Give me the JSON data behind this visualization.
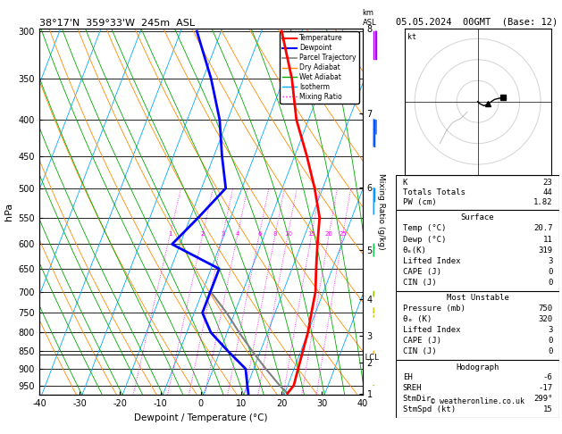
{
  "title_left": "38°17'N  359°33'W  245m  ASL",
  "title_right": "05.05.2024  00GMT  (Base: 12)",
  "xlabel": "Dewpoint / Temperature (°C)",
  "ylabel_left": "hPa",
  "pressure_levels": [
    300,
    350,
    400,
    450,
    500,
    550,
    600,
    650,
    700,
    750,
    800,
    850,
    900,
    950
  ],
  "temp_profile_p": [
    300,
    350,
    400,
    450,
    500,
    550,
    600,
    650,
    700,
    750,
    800,
    850,
    900,
    950,
    975
  ],
  "temp_profile_t": [
    -15,
    -8,
    -3,
    3,
    8,
    12,
    14,
    16,
    18,
    19,
    20,
    20.5,
    21,
    21.5,
    20.7
  ],
  "dewp_profile_p": [
    300,
    350,
    400,
    450,
    500,
    550,
    600,
    650,
    700,
    750,
    800,
    850,
    900,
    950,
    975
  ],
  "dewp_profile_t": [
    -36,
    -28,
    -22,
    -18,
    -14,
    -18,
    -22,
    -8,
    -8,
    -8,
    -4,
    2,
    8,
    10,
    11
  ],
  "parcel_profile_p": [
    975,
    950,
    900,
    850,
    800,
    750,
    700
  ],
  "parcel_profile_t": [
    20.7,
    18,
    13,
    8,
    3,
    -2,
    -8
  ],
  "lcl_pressure": 860,
  "stats": {
    "K": "23",
    "Totals_Totals": "44",
    "PW_cm": "1.82",
    "Surface_Temp": "20.7",
    "Surface_Dewp": "11",
    "Surface_Theta_e": "319",
    "Surface_LI": "3",
    "Surface_CAPE": "0",
    "Surface_CIN": "0",
    "MU_Pressure": "750",
    "MU_Theta_e": "320",
    "MU_LI": "3",
    "MU_CAPE": "0",
    "MU_CIN": "0",
    "EH": "-6",
    "SREH": "-17",
    "StmDir": "299°",
    "StmSpd": "15"
  },
  "colors": {
    "temperature": "#ff0000",
    "dewpoint": "#0000ff",
    "parcel": "#808080",
    "dry_adiabat": "#ff8c00",
    "wet_adiabat": "#00aa00",
    "isotherm": "#00aaff",
    "mixing_ratio": "#ff00ff",
    "background": "#ffffff",
    "grid": "#000000"
  },
  "wind_barbs": [
    {
      "p": 300,
      "spd": 30,
      "dir": 270,
      "color": "#aa00ff"
    },
    {
      "p": 400,
      "spd": 25,
      "dir": 255,
      "color": "#0055ff"
    },
    {
      "p": 500,
      "spd": 15,
      "dir": 250,
      "color": "#0099ff"
    },
    {
      "p": 600,
      "spd": 8,
      "dir": 240,
      "color": "#00cc44"
    },
    {
      "p": 700,
      "spd": 6,
      "dir": 200,
      "color": "#88cc00"
    },
    {
      "p": 750,
      "spd": 5,
      "dir": 160,
      "color": "#cccc00"
    },
    {
      "p": 850,
      "spd": 4,
      "dir": 130,
      "color": "#ffaa00"
    },
    {
      "p": 950,
      "spd": 3,
      "dir": 90,
      "color": "#88cc00"
    }
  ],
  "mixing_ratio_values": [
    1,
    2,
    3,
    4,
    6,
    8,
    10,
    15,
    20,
    25
  ],
  "km_ticks": [
    1,
    2,
    3,
    4,
    5,
    6,
    7,
    8
  ],
  "km_pressures": [
    977,
    875,
    795,
    700,
    588,
    472,
    363,
    269
  ],
  "skew_factor": 35.0
}
